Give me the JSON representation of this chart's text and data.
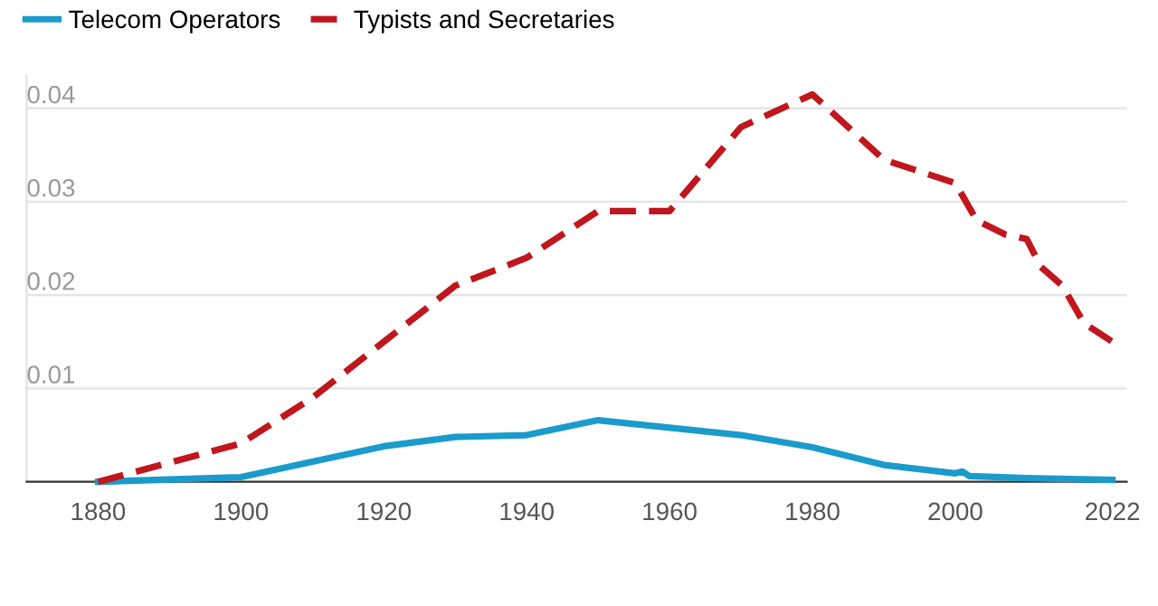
{
  "chart_data": {
    "type": "line",
    "xlim": [
      1870,
      2024
    ],
    "xticks": [
      1880,
      1900,
      1920,
      1940,
      1960,
      1980,
      2000,
      2022
    ],
    "ylim": [
      0,
      0.0435
    ],
    "yticks": [
      {
        "value": 0,
        "label": null
      },
      0.01,
      0.02,
      0.03,
      0.04
    ],
    "grid": "y",
    "legend": "top left",
    "series": [
      {
        "name": "Telecom Operators",
        "color": "#1a9bcb",
        "line_style": "solid",
        "x": [
          1880,
          1900,
          1920,
          1930,
          1940,
          1950,
          1970,
          1980,
          1990,
          2000,
          2001,
          2002,
          2010,
          2022
        ],
        "values": [
          0,
          0.0005,
          0.0038,
          0.0048,
          0.005,
          0.0066,
          0.005,
          0.0037,
          0.0018,
          0.0009,
          0.0011,
          0.0006,
          0.0004,
          0.0002
        ]
      },
      {
        "name": "Typists and Secretaries",
        "color": "#c0161d",
        "line_style": "dashed",
        "x": [
          1880,
          1900,
          1910,
          1920,
          1930,
          1940,
          1950,
          1960,
          1970,
          1980,
          1990,
          2000,
          2003,
          2007,
          2010,
          2012,
          2015,
          2018,
          2022
        ],
        "values": [
          0,
          0.0041,
          0.009,
          0.015,
          0.021,
          0.024,
          0.029,
          0.029,
          0.038,
          0.0415,
          0.0345,
          0.032,
          0.028,
          0.0265,
          0.026,
          0.023,
          0.021,
          0.017,
          0.015
        ]
      }
    ]
  }
}
